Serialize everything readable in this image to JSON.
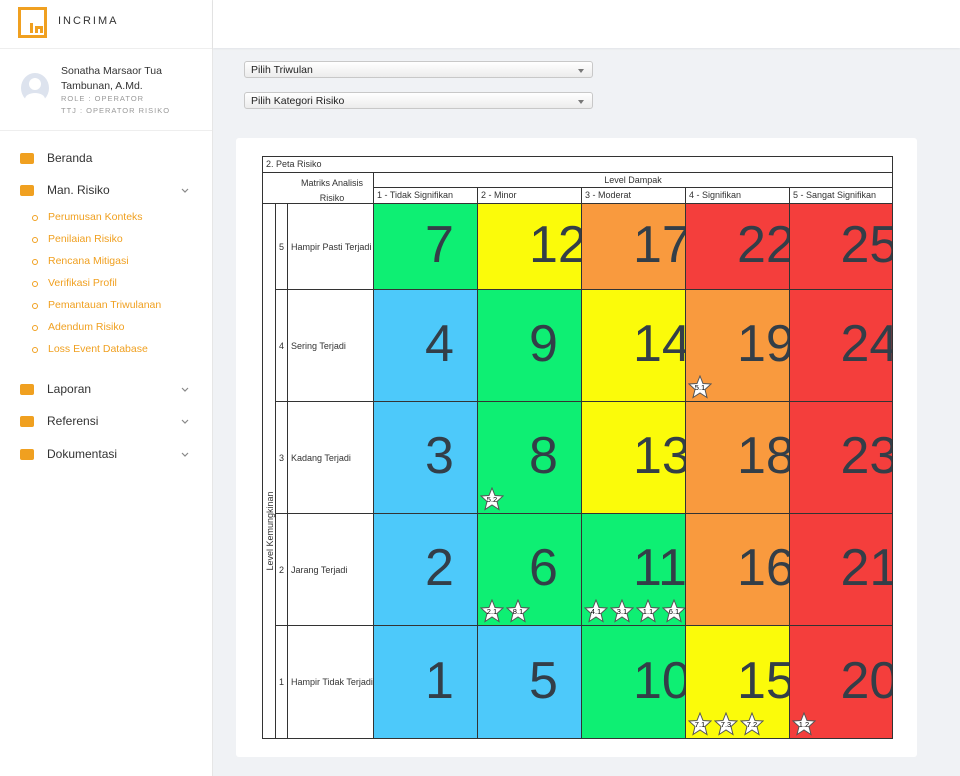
{
  "brand": "INCRIMA",
  "user": {
    "name": "Sonatha Marsaor Tua Tambunan, A.Md.",
    "role": "ROLE : OPERATOR",
    "ttj": "TTJ : OPERATOR RISIKO"
  },
  "nav": [
    {
      "label": "Beranda"
    },
    {
      "label": "Man. Risiko",
      "children": [
        {
          "label": "Perumusan Konteks"
        },
        {
          "label": "Penilaian Risiko"
        },
        {
          "label": "Rencana Mitigasi"
        },
        {
          "label": "Verifikasi Profil"
        },
        {
          "label": "Pemantauan Triwulanan"
        },
        {
          "label": "Adendum Risiko"
        },
        {
          "label": "Loss Event Database"
        }
      ]
    },
    {
      "label": "Laporan"
    },
    {
      "label": "Referensi"
    },
    {
      "label": "Dokumentasi"
    }
  ],
  "filters": [
    "Pilih Triwulan",
    "Pilih Kategori Risiko"
  ],
  "matrix": {
    "title": "2. Peta Risiko",
    "corner": "Matriks Analisis Risiko",
    "impact_label": "Level Dampak",
    "likelihood_label": "Level Kemungkinan",
    "impact_levels": [
      "1 - Tidak Signifikan",
      "2 - Minor",
      "3 - Moderat",
      "4 - Signifikan",
      "5 - Sangat Signifikan"
    ],
    "rows": [
      {
        "level": 5,
        "label": "Hampir Pasti Terjadi",
        "cells": [
          {
            "score": 7,
            "color": "#0eef73",
            "stars": []
          },
          {
            "score": 12,
            "color": "#fbfb0a",
            "stars": []
          },
          {
            "score": 17,
            "color": "#f99a3e",
            "stars": []
          },
          {
            "score": 22,
            "color": "#f43e3c",
            "stars": []
          },
          {
            "score": 25,
            "color": "#f43e3c",
            "stars": []
          }
        ]
      },
      {
        "level": 4,
        "label": "Sering Terjadi",
        "cells": [
          {
            "score": 4,
            "color": "#4dc9fa",
            "stars": []
          },
          {
            "score": 9,
            "color": "#0eef73",
            "stars": []
          },
          {
            "score": 14,
            "color": "#fbfb0a",
            "stars": []
          },
          {
            "score": 19,
            "color": "#f99a3e",
            "stars": [
              "5.1"
            ]
          },
          {
            "score": 24,
            "color": "#f43e3c",
            "stars": []
          }
        ]
      },
      {
        "level": 3,
        "label": "Kadang Terjadi",
        "cells": [
          {
            "score": 3,
            "color": "#4dc9fa",
            "stars": []
          },
          {
            "score": 8,
            "color": "#0eef73",
            "stars": [
              "5.2"
            ]
          },
          {
            "score": 13,
            "color": "#fbfb0a",
            "stars": []
          },
          {
            "score": 18,
            "color": "#f99a3e",
            "stars": []
          },
          {
            "score": 23,
            "color": "#f43e3c",
            "stars": []
          }
        ]
      },
      {
        "level": 2,
        "label": "Jarang Terjadi",
        "cells": [
          {
            "score": 2,
            "color": "#4dc9fa",
            "stars": []
          },
          {
            "score": 6,
            "color": "#0eef73",
            "stars": [
              "2.1",
              "8.1"
            ]
          },
          {
            "score": 11,
            "color": "#0eef73",
            "stars": [
              "4.1",
              "3.1",
              "1.1",
              "6.1"
            ]
          },
          {
            "score": 16,
            "color": "#f99a3e",
            "stars": []
          },
          {
            "score": 21,
            "color": "#f43e3c",
            "stars": []
          }
        ]
      },
      {
        "level": 1,
        "label": "Hampir Tidak Terjadi",
        "cells": [
          {
            "score": 1,
            "color": "#4dc9fa",
            "stars": []
          },
          {
            "score": 5,
            "color": "#4dc9fa",
            "stars": []
          },
          {
            "score": 10,
            "color": "#0eef73",
            "stars": []
          },
          {
            "score": 15,
            "color": "#fbfb0a",
            "stars": [
              "7.1",
              "7.3",
              "7.2"
            ]
          },
          {
            "score": 20,
            "color": "#f43e3c",
            "stars": [
              "1.2"
            ]
          }
        ]
      }
    ]
  }
}
